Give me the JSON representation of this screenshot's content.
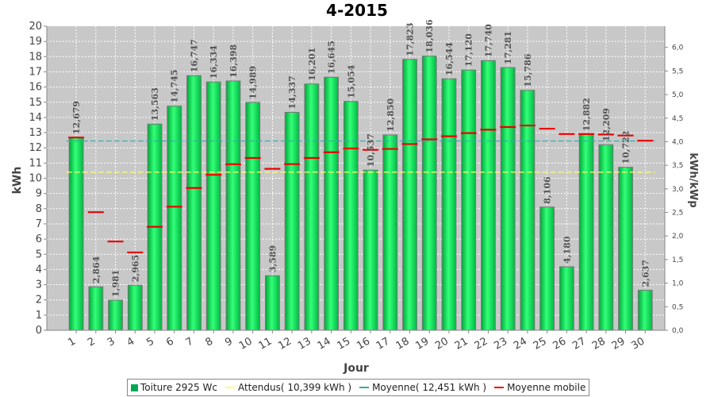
{
  "chart_data": {
    "type": "bar",
    "title": "4-2015",
    "xlabel": "Jour",
    "ylabel": "kWh",
    "ylabel_right": "kWh/kWp",
    "ylim": [
      0,
      20
    ],
    "ylim_right": [
      0,
      6.45
    ],
    "yticks_right": [
      "0,0",
      "0,5",
      "1,0",
      "1,5",
      "2,0",
      "2,5",
      "3,0",
      "3,5",
      "4,0",
      "4,5",
      "5,0",
      "5,5",
      "6,0"
    ],
    "grid": true,
    "legend_position": "bottom",
    "categories": [
      "1",
      "2",
      "3",
      "4",
      "5",
      "6",
      "7",
      "8",
      "9",
      "10",
      "11",
      "12",
      "13",
      "14",
      "15",
      "16",
      "17",
      "18",
      "19",
      "20",
      "21",
      "22",
      "23",
      "24",
      "25",
      "26",
      "27",
      "28",
      "29",
      "30"
    ],
    "series": [
      {
        "name": "Toiture 2925 Wc",
        "type": "bar",
        "color": "#00cc44",
        "values": [
          12.679,
          2.864,
          1.981,
          2.965,
          13.563,
          14.745,
          16.747,
          16.334,
          16.398,
          14.989,
          3.589,
          14.337,
          16.201,
          16.645,
          15.054,
          10.537,
          12.85,
          17.823,
          18.036,
          16.544,
          17.12,
          17.74,
          17.281,
          15.786,
          8.106,
          4.18,
          12.882,
          12.209,
          10.722,
          2.637
        ],
        "labels": [
          "12,679",
          "2,864",
          "1,981",
          "2,965",
          "13,563",
          "14,745",
          "16,747",
          "16,334",
          "16,398",
          "14,989",
          "3,589",
          "14,337",
          "16,201",
          "16,645",
          "15,054",
          "10,537",
          "12,850",
          "17,823",
          "18,036",
          "16,544",
          "17,120",
          "17,740",
          "17,281",
          "15,786",
          "8,106",
          "4,180",
          "12,882",
          "12,209",
          "10,722",
          "2,637"
        ]
      },
      {
        "name": "Attendus( 10,399 kWh )",
        "type": "hline",
        "color": "#ffff66",
        "value": 10.399
      },
      {
        "name": "Moyenne( 12,451 kWh )",
        "type": "hline",
        "color": "#33aaaa",
        "value": 12.451
      },
      {
        "name": "Moyenne mobile",
        "type": "step",
        "color": "#ee0000",
        "values": [
          12.68,
          7.77,
          5.84,
          5.12,
          6.81,
          8.13,
          9.36,
          10.23,
          10.92,
          11.33,
          10.62,
          10.93,
          11.33,
          11.71,
          11.96,
          11.87,
          11.93,
          12.25,
          12.56,
          12.76,
          12.97,
          13.19,
          13.37,
          13.47,
          13.26,
          12.91,
          12.91,
          12.88,
          12.81,
          12.47
        ]
      }
    ]
  }
}
